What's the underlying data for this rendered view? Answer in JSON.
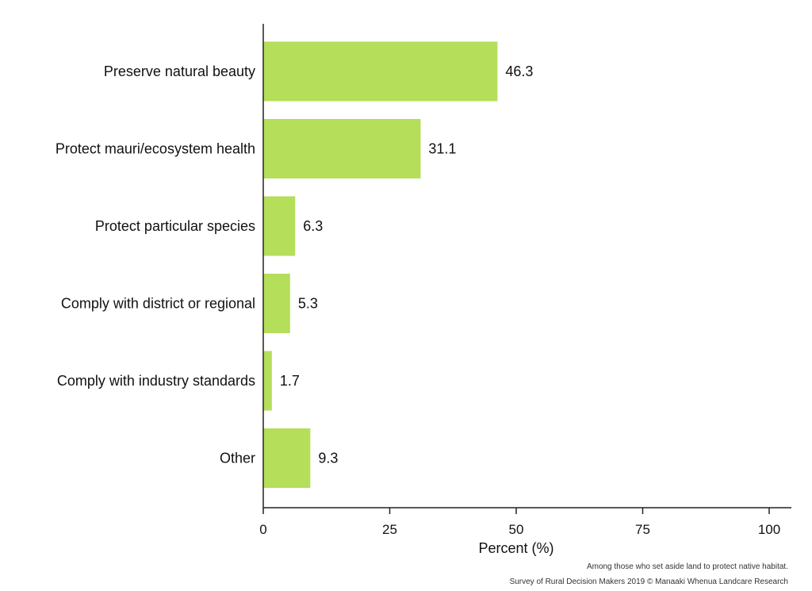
{
  "chart_data": {
    "type": "bar",
    "orientation": "horizontal",
    "categories": [
      "Preserve natural beauty",
      "Protect mauri/ecosystem health",
      "Protect particular species",
      "Comply with district or regional",
      "Comply with industry standards",
      "Other"
    ],
    "values": [
      46.3,
      31.1,
      6.3,
      5.3,
      1.7,
      9.3
    ],
    "value_labels": [
      "46.3",
      "31.1",
      "6.3",
      "5.3",
      "1.7",
      "9.3"
    ],
    "xlabel": "Percent (%)",
    "ylabel": "",
    "title": "",
    "xlim": [
      0,
      100
    ],
    "xticks": [
      0,
      25,
      50,
      75,
      100
    ],
    "xtick_labels": [
      "0",
      "25",
      "50",
      "75",
      "100"
    ],
    "grid": false,
    "bar_color": "#b5de5a"
  },
  "notes": {
    "line1": "Among those who set aside land to protect native habitat.",
    "line2": "Survey of Rural Decision Makers 2019 © Manaaki Whenua Landcare Research"
  }
}
